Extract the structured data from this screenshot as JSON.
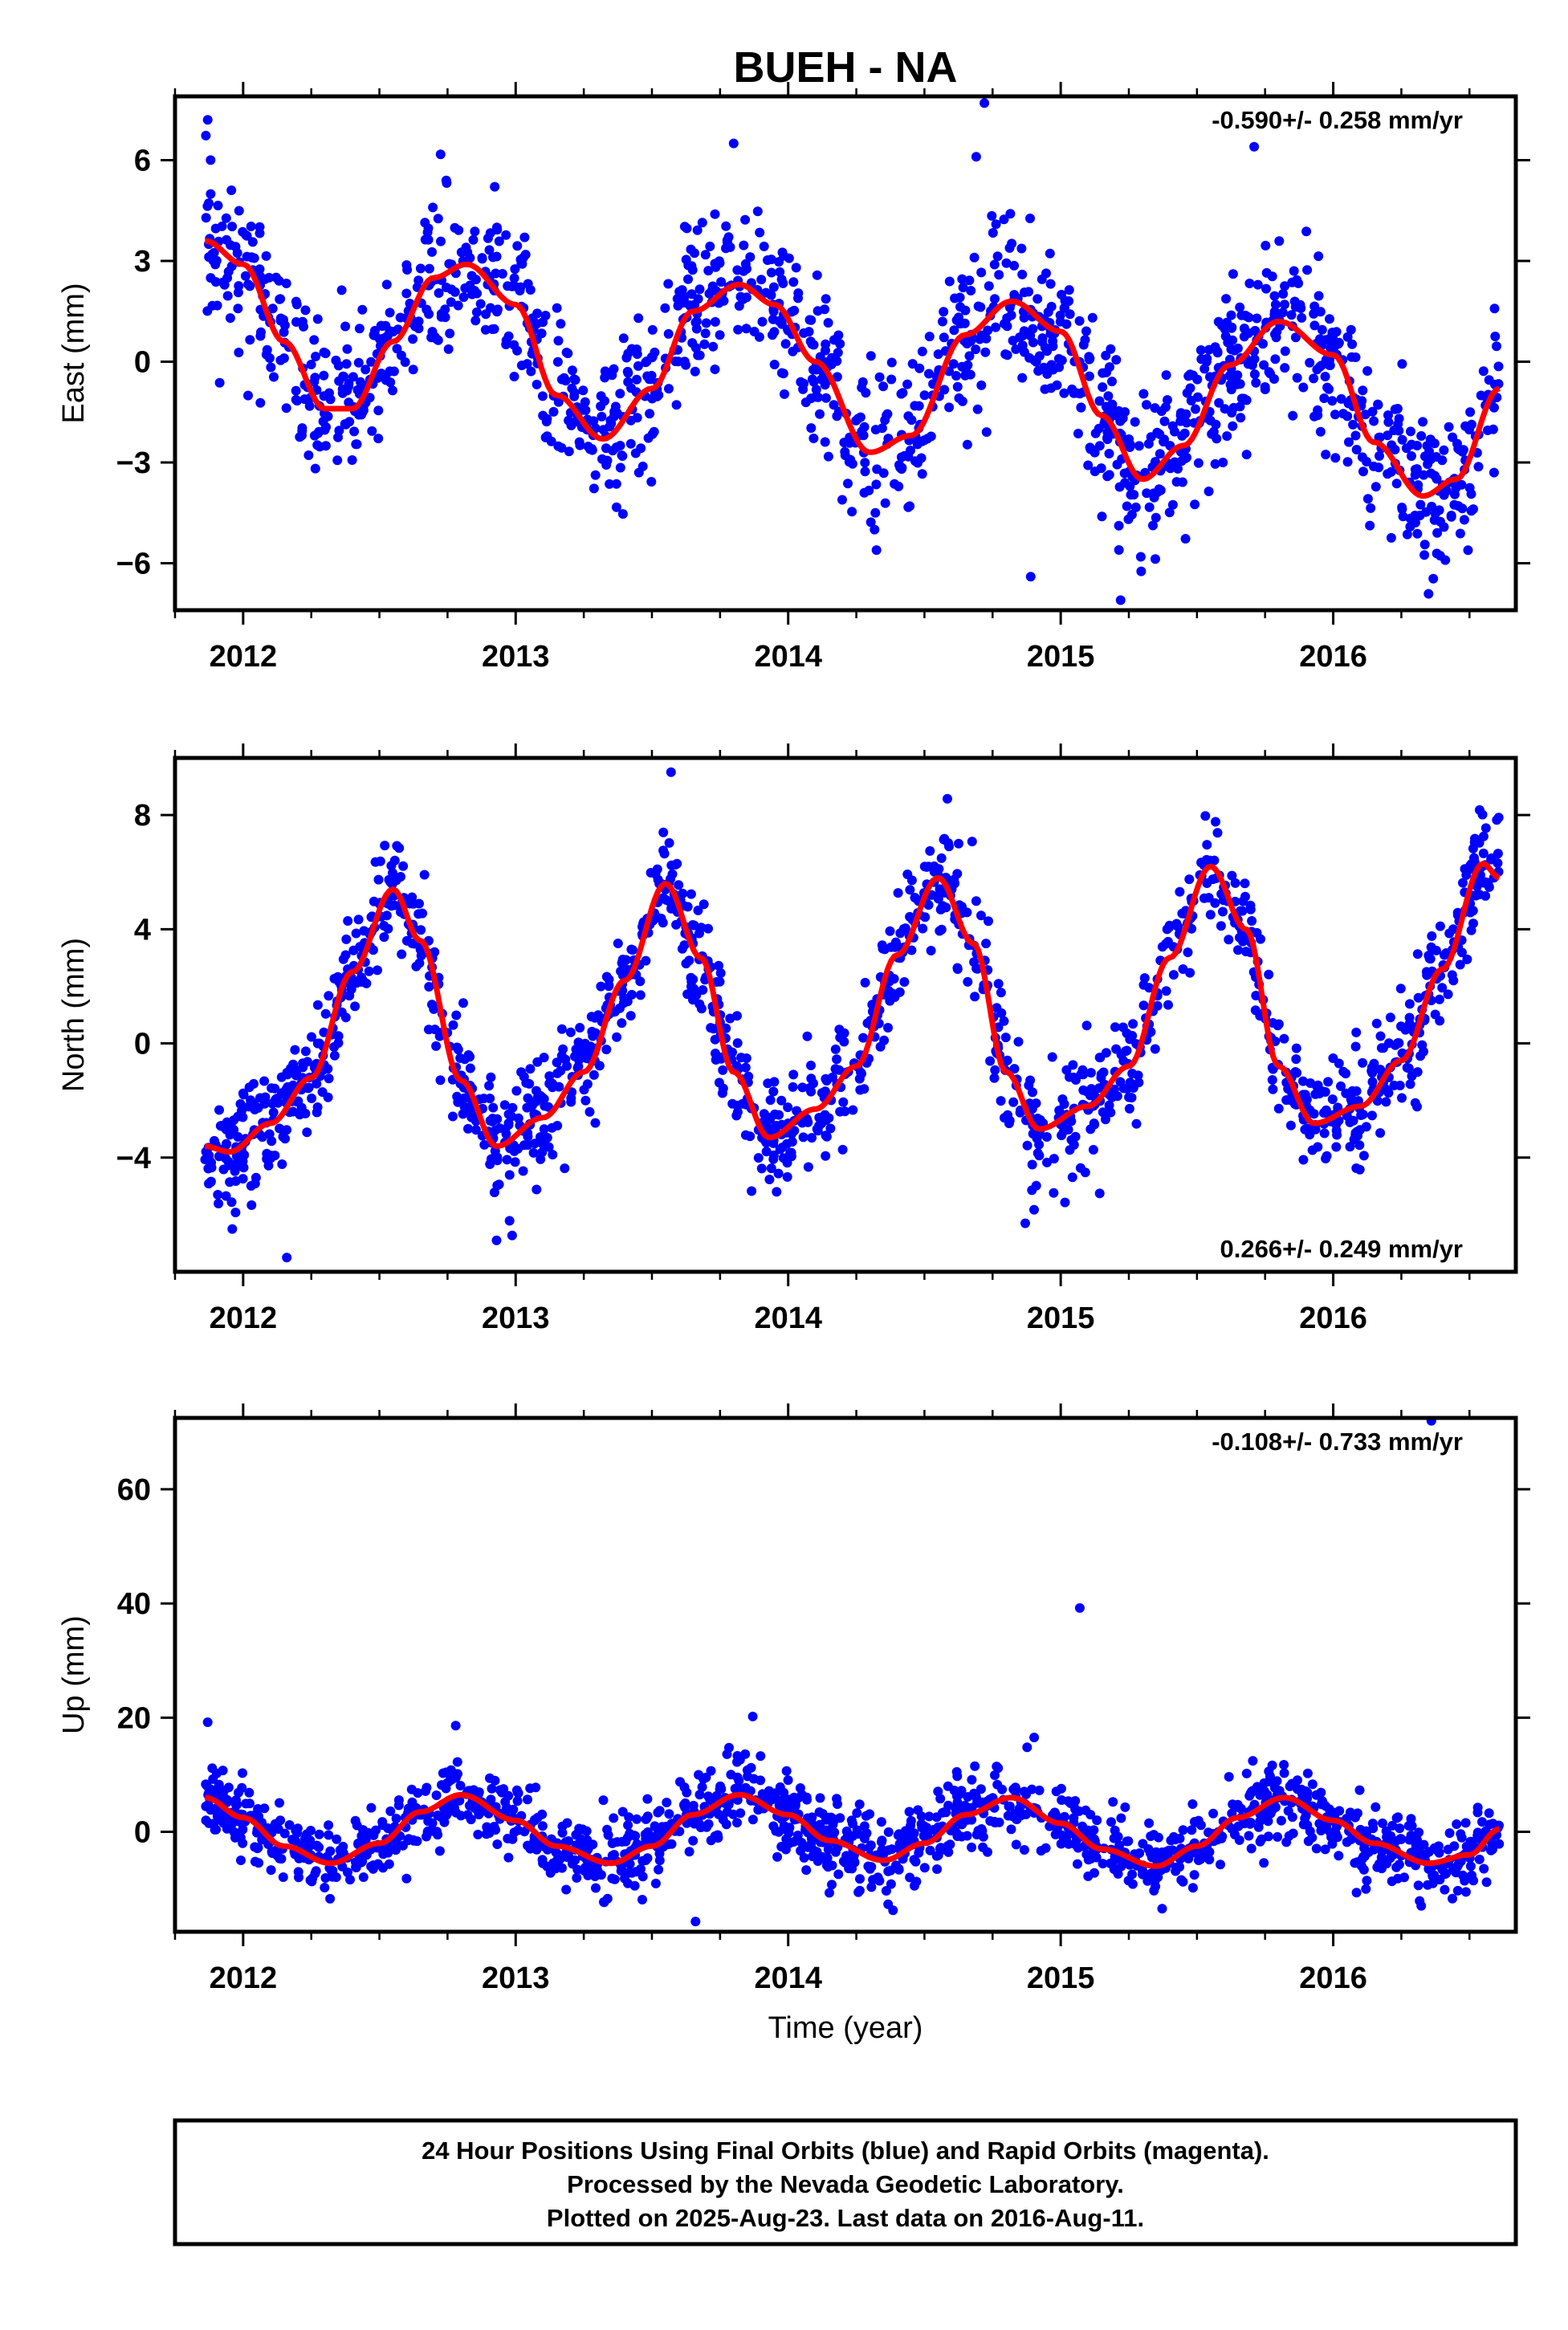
{
  "title": "BUEH - NA",
  "xlabel": "Time (year)",
  "footer": {
    "line1": "24 Hour Positions Using Final Orbits (blue) and Rapid Orbits (magenta).",
    "line2": "Processed by the Nevada Geodetic Laboratory.",
    "line3": "Plotted on 2025-Aug-23. Last data on 2016-Aug-11."
  },
  "colors": {
    "points": "#0000ff",
    "fit": "#ff0000",
    "frame": "#000000"
  },
  "chart_data": [
    {
      "type": "scatter",
      "name": "east",
      "ylabel": "East (mm)",
      "rate_text": "-0.590+/- 0.258 mm/yr",
      "rate_position": "top-right",
      "xlim": [
        2011.75,
        2016.67
      ],
      "ylim": [
        -7.4,
        7.9
      ],
      "xticks": [
        2012,
        2013,
        2014,
        2015,
        2016
      ],
      "xtick_labels": [
        "2012",
        "2013",
        "2014",
        "2015",
        "2016"
      ],
      "yticks": [
        -6,
        -3,
        0,
        3,
        6
      ],
      "ytick_labels": [
        "−6",
        "−3",
        "0",
        "3",
        "6"
      ],
      "grid": false,
      "data_start": 2011.86,
      "data_end": 2016.61,
      "fit": {
        "x": [
          2011.86,
          2012.0,
          2012.15,
          2012.3,
          2012.4,
          2012.55,
          2012.7,
          2012.82,
          2013.0,
          2013.15,
          2013.32,
          2013.5,
          2013.65,
          2013.82,
          2013.95,
          2014.1,
          2014.3,
          2014.45,
          2014.65,
          2014.82,
          2015.0,
          2015.15,
          2015.3,
          2015.45,
          2015.62,
          2015.8,
          2016.0,
          2016.15,
          2016.33,
          2016.45,
          2016.61
        ],
        "y": [
          3.6,
          2.9,
          0.6,
          -1.4,
          -1.4,
          0.6,
          2.5,
          2.9,
          1.7,
          -1.0,
          -2.3,
          -0.8,
          1.5,
          2.3,
          1.7,
          0.0,
          -2.7,
          -2.2,
          0.8,
          1.8,
          0.9,
          -1.6,
          -3.5,
          -2.5,
          -0.1,
          1.2,
          0.2,
          -2.4,
          -4.0,
          -3.5,
          -0.8
        ]
      },
      "scatter_sd": 1.15,
      "outliers": {
        "x": [
          2011.87,
          2013.8,
          2014.72,
          2014.89,
          2015.71,
          2014.69,
          2015.22
        ],
        "y": [
          7.2,
          6.5,
          7.7,
          -6.4,
          6.4,
          6.1,
          -7.1
        ]
      }
    },
    {
      "type": "scatter",
      "name": "north",
      "ylabel": "North (mm)",
      "rate_text": "0.266+/- 0.249 mm/yr",
      "rate_position": "bottom-right",
      "xlim": [
        2011.75,
        2016.67
      ],
      "ylim": [
        -8.0,
        10.0
      ],
      "xticks": [
        2012,
        2013,
        2014,
        2015,
        2016
      ],
      "xtick_labels": [
        "2012",
        "2013",
        "2014",
        "2015",
        "2016"
      ],
      "yticks": [
        -4,
        0,
        4,
        8
      ],
      "ytick_labels": [
        "−4",
        "0",
        "4",
        "8"
      ],
      "grid": false,
      "data_start": 2011.86,
      "data_end": 2016.61,
      "fit": {
        "x": [
          2011.86,
          2011.95,
          2012.1,
          2012.25,
          2012.4,
          2012.55,
          2012.65,
          2012.8,
          2012.93,
          2013.1,
          2013.25,
          2013.4,
          2013.55,
          2013.68,
          2013.8,
          2013.93,
          2014.1,
          2014.25,
          2014.4,
          2014.55,
          2014.68,
          2014.8,
          2014.92,
          2015.1,
          2015.25,
          2015.4,
          2015.55,
          2015.68,
          2015.8,
          2015.93,
          2016.1,
          2016.25,
          2016.4,
          2016.55,
          2016.61
        ],
        "y": [
          -3.6,
          -3.8,
          -2.8,
          -1.2,
          2.5,
          5.4,
          3.6,
          -1.3,
          -3.6,
          -2.6,
          -1.0,
          2.2,
          5.6,
          3.0,
          -1.0,
          -3.3,
          -2.3,
          -0.8,
          3.1,
          5.8,
          3.5,
          -1.0,
          -3.0,
          -2.2,
          -0.8,
          3.0,
          6.2,
          4.0,
          -0.8,
          -2.8,
          -2.2,
          -0.6,
          2.6,
          6.3,
          5.8
        ]
      },
      "scatter_sd": 1.0,
      "outliers": {
        "x": [
          2013.57,
          2011.96,
          2012.16,
          2012.93,
          2014.87
        ],
        "y": [
          9.5,
          -6.5,
          -7.5,
          -6.9,
          -6.3
        ]
      }
    },
    {
      "type": "scatter",
      "name": "up",
      "ylabel": "Up (mm)",
      "rate_text": "-0.108+/- 0.733 mm/yr",
      "rate_position": "top-right",
      "xlim": [
        2011.75,
        2016.67
      ],
      "ylim": [
        -17.5,
        72.5
      ],
      "xticks": [
        2012,
        2013,
        2014,
        2015,
        2016
      ],
      "xtick_labels": [
        "2012",
        "2013",
        "2014",
        "2015",
        "2016"
      ],
      "yticks": [
        0,
        20,
        40,
        60
      ],
      "ytick_labels": [
        "0",
        "20",
        "40",
        "60"
      ],
      "grid": false,
      "data_start": 2011.86,
      "data_end": 2016.61,
      "fit": {
        "x": [
          2011.86,
          2012.0,
          2012.15,
          2012.32,
          2012.5,
          2012.65,
          2012.8,
          2013.0,
          2013.15,
          2013.35,
          2013.5,
          2013.65,
          2013.82,
          2014.0,
          2014.15,
          2014.35,
          2014.5,
          2014.65,
          2014.82,
          2015.0,
          2015.15,
          2015.35,
          2015.5,
          2015.65,
          2015.82,
          2016.0,
          2016.15,
          2016.35,
          2016.5,
          2016.61
        ],
        "y": [
          6.0,
          2.5,
          -2.5,
          -5.5,
          -2.0,
          3.5,
          6.5,
          2.0,
          -2.5,
          -5.5,
          -2.5,
          3.0,
          6.5,
          3.0,
          -1.5,
          -5.0,
          -2.0,
          3.0,
          6.0,
          1.5,
          -3.0,
          -6.0,
          -2.5,
          2.5,
          6.0,
          2.0,
          -2.0,
          -5.5,
          -4.0,
          0.5
        ]
      },
      "scatter_sd": 3.3,
      "outliers": {
        "x": [
          2015.07,
          2016.36,
          2013.87,
          2011.87,
          2012.78,
          2013.66
        ],
        "y": [
          39.2,
          72.0,
          20.2,
          19.2,
          18.6,
          -15.7
        ]
      }
    }
  ]
}
